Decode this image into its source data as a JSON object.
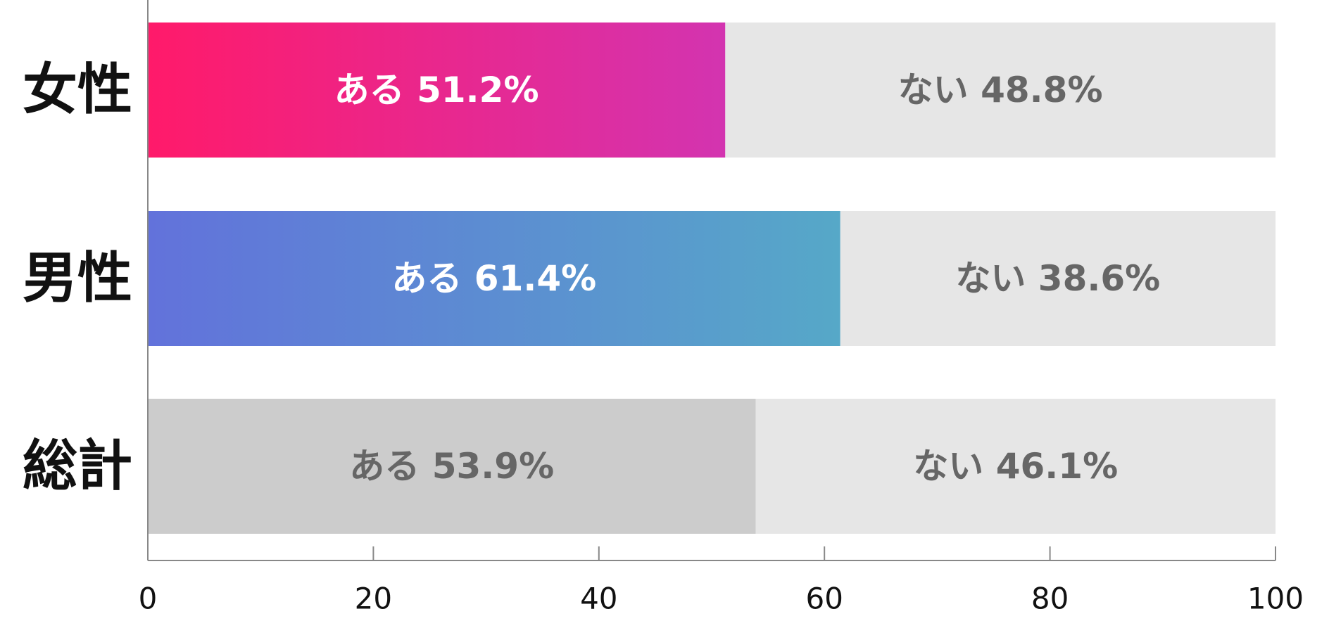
{
  "chart_data": {
    "type": "bar",
    "orientation": "horizontal",
    "stacked": true,
    "categories": [
      "女性",
      "男性",
      "総計"
    ],
    "series": [
      {
        "name": "ある",
        "values": [
          51.2,
          61.4,
          53.9
        ]
      },
      {
        "name": "ない",
        "values": [
          48.8,
          38.6,
          46.1
        ]
      }
    ],
    "data_labels": [
      [
        "ある 51.2%",
        "ない 48.8%"
      ],
      [
        "ある 61.4%",
        "ない 38.6%"
      ],
      [
        "ある 53.9%",
        "ない 46.1%"
      ]
    ],
    "xlim": [
      0,
      100
    ],
    "x_ticks": [
      "0",
      "20",
      "40",
      "60",
      "80",
      "100"
    ],
    "grid": false,
    "legend": "none",
    "colors": {
      "female_start": "#FF1A6A",
      "female_end": "#D334B0",
      "male_start": "#6272DB",
      "male_end": "#56A8C8",
      "total": "#CCCCCC",
      "remainder": "#E6E6E6",
      "label_light": "#FFFFFF",
      "label_dark": "#666666",
      "category_label": "#111111",
      "axis": "#888888",
      "tick_label": "#111111"
    }
  }
}
